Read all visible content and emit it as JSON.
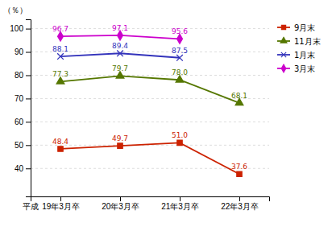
{
  "chart_data": {
    "type": "line",
    "categories": [
      "19年3月卒",
      "20年3月卒",
      "21年3月卒",
      "22年3月卒"
    ],
    "ylabel": "（％）",
    "xlabel": "平成",
    "ylim": [
      28,
      104
    ],
    "yticks": [
      40,
      50,
      60,
      70,
      80,
      90,
      100
    ],
    "grid": true,
    "legend": "right",
    "data_labels": true,
    "series": [
      {
        "name": "9月末",
        "color": "#cc2200",
        "marker": "square",
        "values": [
          48.4,
          49.7,
          51.0,
          37.6
        ],
        "value_labels": [
          "48.4",
          "49.7",
          "51.0",
          "37.6"
        ]
      },
      {
        "name": "11月末",
        "color": "#557700",
        "marker": "triangle",
        "values": [
          77.3,
          79.7,
          78.0,
          68.1
        ],
        "value_labels": [
          "77.3",
          "79.7",
          "78.0",
          "68.1"
        ]
      },
      {
        "name": "1月末",
        "color": "#3333bb",
        "marker": "x",
        "values": [
          88.1,
          89.4,
          87.5,
          null
        ],
        "value_labels": [
          "88.1",
          "89.4",
          "87.5",
          null
        ]
      },
      {
        "name": "3月末",
        "color": "#cc00cc",
        "marker": "diamond",
        "values": [
          96.7,
          97.1,
          95.6,
          null
        ],
        "value_labels": [
          "96.7",
          "97.1",
          "95.6",
          null
        ]
      }
    ]
  }
}
